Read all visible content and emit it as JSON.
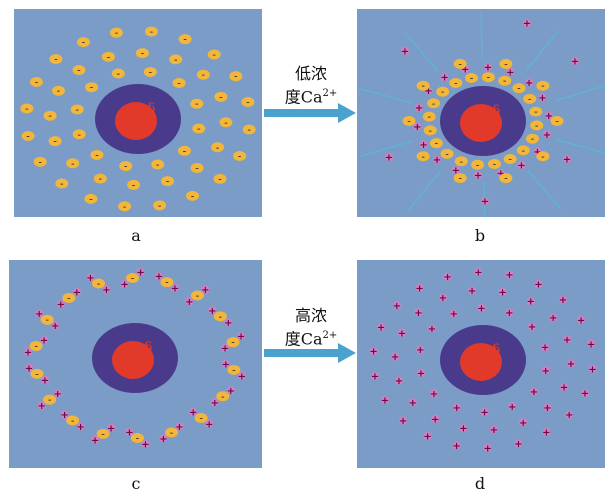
{
  "panels": [
    {
      "id": "a",
      "caption": "a",
      "particle_symbol": "δ"
    },
    {
      "id": "b",
      "caption": "b",
      "particle_symbol": "δ"
    },
    {
      "id": "c",
      "caption": "c",
      "particle_symbol": "δ"
    },
    {
      "id": "d",
      "caption": "d",
      "particle_symbol": "δ"
    }
  ],
  "arrows": {
    "low": {
      "line1": "低浓",
      "line2_prefix": "度Ca",
      "superscript": "2+"
    },
    "high": {
      "line1": "高浓",
      "line2_prefix": "度Ca",
      "superscript": "2+"
    }
  },
  "ion_labels": {
    "negative": "-",
    "positive": "+"
  },
  "colors": {
    "background": "#7b9cc6",
    "particle_outer": "#4a3a8c",
    "particle_core": "#e23a2a",
    "negative_ion": "#f2b63a",
    "positive_ion": "#e27bc0",
    "arrow": "#4aa3cf",
    "field_lines": "#5fb3d6"
  }
}
